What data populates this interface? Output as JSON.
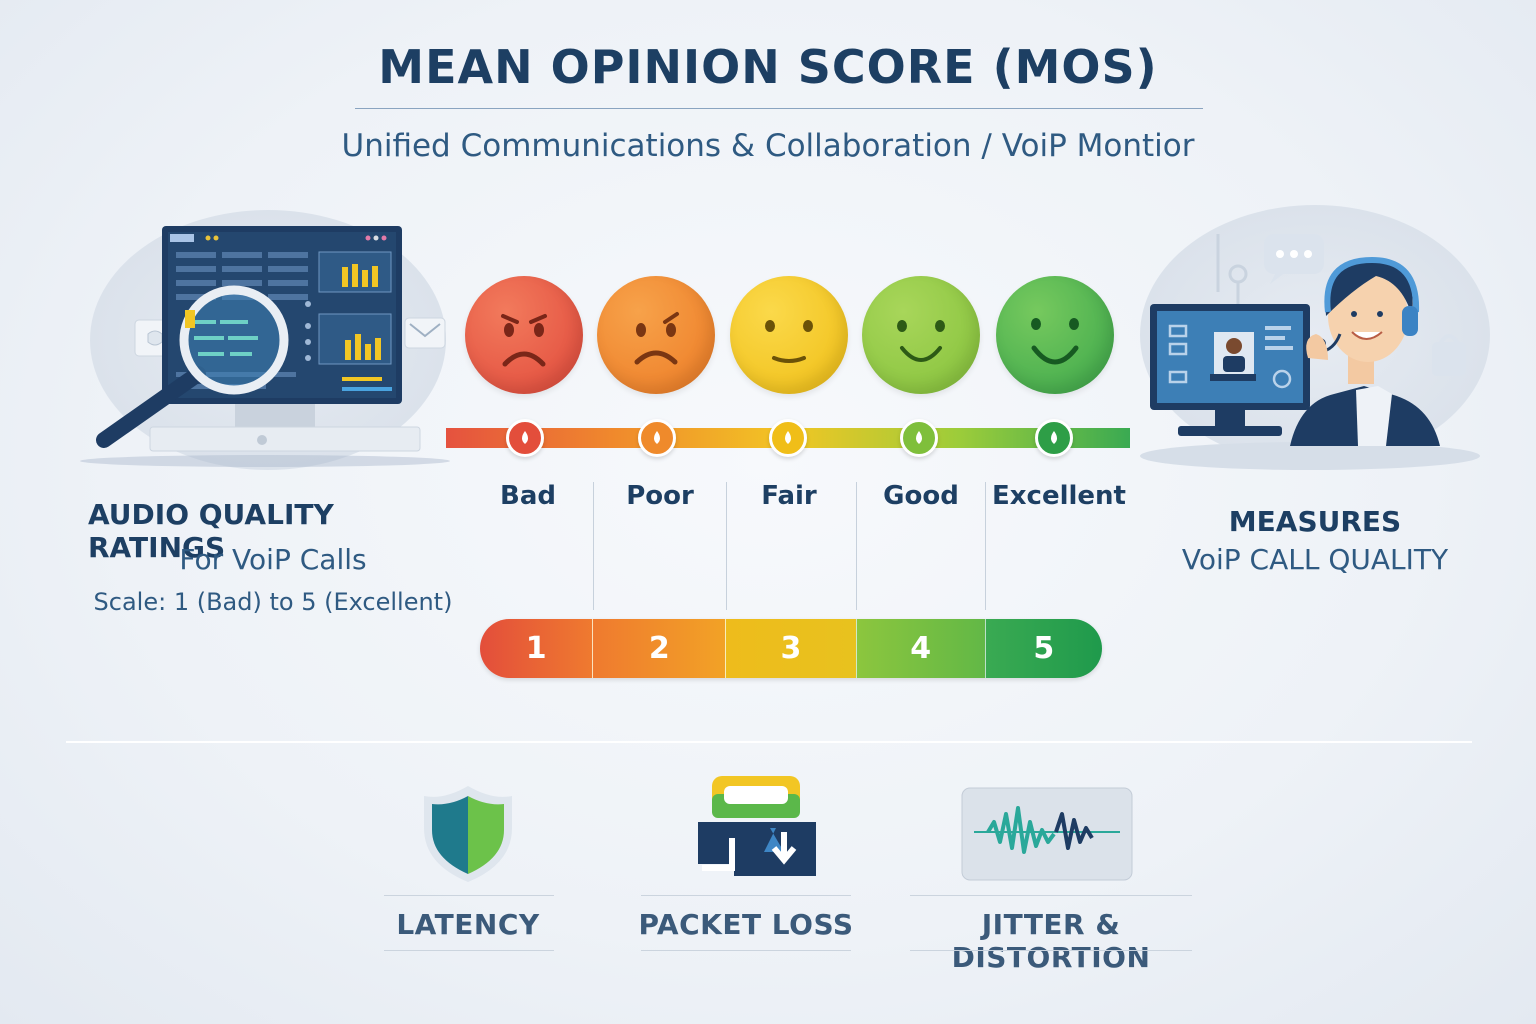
{
  "header": {
    "title": "MEAN OPINION SCORE (MOS)",
    "subtitle": "Unified Communications & Collaboration / VoiP Montior"
  },
  "left_panel": {
    "title": "AUDIO QUALITY RATINGS",
    "subtitle": "For VoiP Calls",
    "scale_text": "Scale: 1 (Bad) to 5 (Excellent)",
    "icons": [
      "dashboard-monitor-icon",
      "magnifying-glass-icon",
      "mail-icon"
    ]
  },
  "right_panel": {
    "title": "MEASURES",
    "subtitle": "VoiP CALL QUALITY",
    "icons": [
      "call-agent-headset-icon",
      "chat-bubble-icon",
      "video-call-monitor-icon"
    ]
  },
  "scale": {
    "levels": [
      {
        "label": "Bad",
        "number": "1",
        "color": "#e5523f",
        "face": "angry"
      },
      {
        "label": "Poor",
        "number": "2",
        "color": "#f08a2c",
        "face": "frown"
      },
      {
        "label": "Fair",
        "number": "3",
        "color": "#f2c624",
        "face": "neutral"
      },
      {
        "label": "Good",
        "number": "4",
        "color": "#8cc63e",
        "face": "smile"
      },
      {
        "label": "Excellent",
        "number": "5",
        "color": "#3aaa52",
        "face": "big-smile"
      }
    ]
  },
  "metrics": [
    {
      "label": "LATENCY",
      "icon": "shield-icon"
    },
    {
      "label": "PACKET LOSS",
      "icon": "packet-download-icon"
    },
    {
      "label": "JITTER & DISTORTION",
      "icon": "waveform-icon"
    }
  ]
}
